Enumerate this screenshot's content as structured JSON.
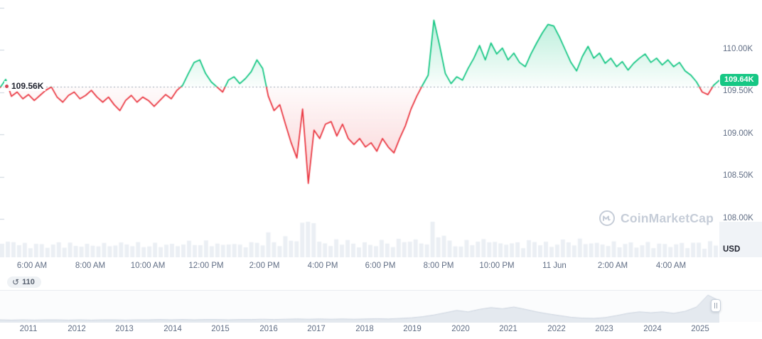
{
  "current_price": {
    "label": "109.64K",
    "value": 109.64
  },
  "baseline": {
    "label": "109.56K",
    "value": 109.56
  },
  "price_axis": {
    "unit_label": "USD",
    "ticks": [
      {
        "label": "110.00K",
        "value": 110.0
      },
      {
        "label": "109.50K",
        "value": 109.5
      },
      {
        "label": "109.00K",
        "value": 109.0
      },
      {
        "label": "108.50K",
        "value": 108.5
      },
      {
        "label": "108.00K",
        "value": 108.0
      }
    ]
  },
  "time_axis": {
    "ticks": [
      "6:00 AM",
      "8:00 AM",
      "10:00 AM",
      "12:00 PM",
      "2:00 PM",
      "4:00 PM",
      "6:00 PM",
      "8:00 PM",
      "10:00 PM",
      "11 Jun",
      "2:00 AM",
      "4:00 AM"
    ]
  },
  "history_badge": {
    "count": "110"
  },
  "watermark": {
    "text": "CoinMarketCap"
  },
  "colors": {
    "up": "#16c784",
    "down": "#ea3943",
    "baseline_line": "#9aa5b3",
    "axis_text": "#616e85",
    "volume_bar": "#ebeff4",
    "left_tick": "#cbd3dd",
    "nav_fill": "#e4e9ef",
    "nav_stroke": "#ccd4df"
  },
  "chart_data": {
    "type": "line",
    "unit": "USD (thousands)",
    "x_ticks": [
      "6:00 AM",
      "8:00 AM",
      "10:00 AM",
      "12:00 PM",
      "2:00 PM",
      "4:00 PM",
      "6:00 PM",
      "8:00 PM",
      "10:00 PM",
      "11 Jun",
      "2:00 AM",
      "4:00 AM"
    ],
    "y_tick_values": [
      110.0,
      109.5,
      109.0,
      108.5,
      108.0
    ],
    "ylim": [
      107.95,
      110.6
    ],
    "baseline_value": 109.56,
    "last_value": 109.64,
    "grid": false,
    "legend": "none",
    "values": [
      109.55,
      109.65,
      109.45,
      109.5,
      109.42,
      109.47,
      109.4,
      109.46,
      109.52,
      109.56,
      109.44,
      109.38,
      109.46,
      109.5,
      109.42,
      109.46,
      109.52,
      109.44,
      109.38,
      109.44,
      109.35,
      109.28,
      109.4,
      109.46,
      109.38,
      109.44,
      109.4,
      109.33,
      109.4,
      109.47,
      109.42,
      109.52,
      109.58,
      109.72,
      109.85,
      109.88,
      109.72,
      109.62,
      109.56,
      109.5,
      109.64,
      109.68,
      109.6,
      109.66,
      109.74,
      109.88,
      109.78,
      109.45,
      109.28,
      109.35,
      109.12,
      108.9,
      108.72,
      109.3,
      108.42,
      109.05,
      108.95,
      109.12,
      109.15,
      108.98,
      109.12,
      108.95,
      108.88,
      108.95,
      108.85,
      108.9,
      108.8,
      108.95,
      108.85,
      108.78,
      108.95,
      109.1,
      109.3,
      109.45,
      109.58,
      109.7,
      110.35,
      110.05,
      109.72,
      109.6,
      109.68,
      109.64,
      109.78,
      109.9,
      110.05,
      109.88,
      110.08,
      109.95,
      110.02,
      109.88,
      109.96,
      109.85,
      109.8,
      109.95,
      110.08,
      110.2,
      110.3,
      110.28,
      110.15,
      110.0,
      109.85,
      109.75,
      109.92,
      110.04,
      109.9,
      109.96,
      109.84,
      109.9,
      109.8,
      109.86,
      109.76,
      109.84,
      109.9,
      109.95,
      109.85,
      109.9,
      109.82,
      109.88,
      109.8,
      109.85,
      109.75,
      109.7,
      109.62,
      109.5,
      109.47,
      109.58,
      109.64
    ]
  },
  "navigator": {
    "years": [
      "2011",
      "2012",
      "2013",
      "2014",
      "2015",
      "2016",
      "2017",
      "2018",
      "2019",
      "2020",
      "2021",
      "2022",
      "2023",
      "2024",
      "2025"
    ],
    "values": [
      0.05,
      0.04,
      0.05,
      0.04,
      0.05,
      0.05,
      0.04,
      0.05,
      0.04,
      0.05,
      0.05,
      0.04,
      0.05,
      0.05,
      0.06,
      0.05,
      0.06,
      0.05,
      0.06,
      0.06,
      0.05,
      0.06,
      0.06,
      0.07,
      0.06,
      0.07,
      0.08,
      0.07,
      0.08,
      0.07,
      0.08,
      0.07,
      0.08,
      0.09,
      0.08,
      0.1,
      0.12,
      0.16,
      0.22,
      0.3,
      0.38,
      0.33,
      0.42,
      0.48,
      0.44,
      0.5,
      0.42,
      0.33,
      0.26,
      0.2,
      0.14,
      0.11,
      0.1,
      0.13,
      0.2,
      0.28,
      0.33,
      0.3,
      0.33,
      0.28,
      0.35,
      0.5,
      0.92,
      0.72
    ]
  }
}
